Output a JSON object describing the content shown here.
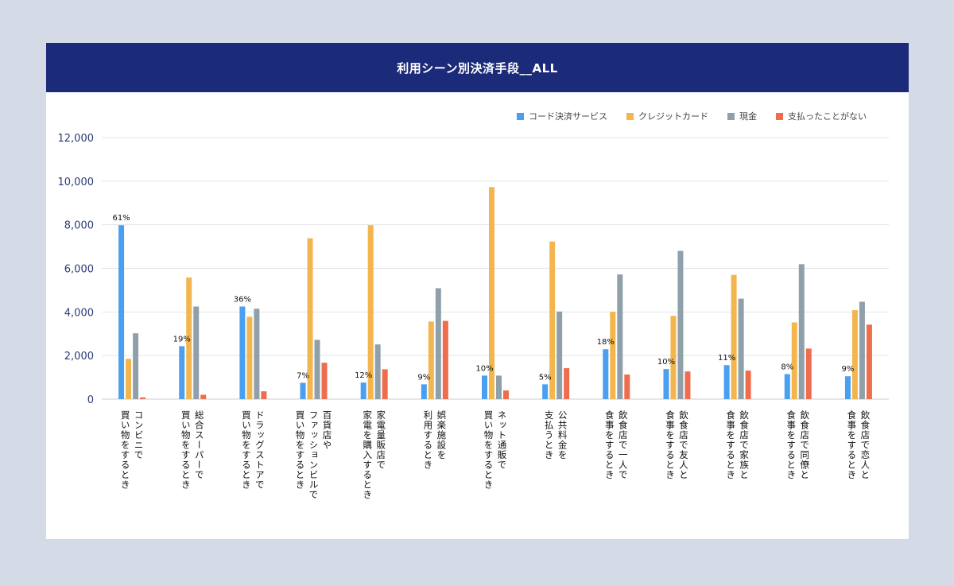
{
  "title": "利用シーン別決済手段__ALL",
  "colors": {
    "header_bg": "#1c2a7a",
    "page_bg": "#d4dae6"
  },
  "chart_data": {
    "type": "bar",
    "title": "利用シーン別決済手段__ALL",
    "ylim": [
      0,
      12000
    ],
    "y_ticks": [
      "0",
      "2,000",
      "4,000",
      "6,000",
      "8,000",
      "10,000",
      "12,000"
    ],
    "legend_position": "top-right",
    "grid": true,
    "categories": [
      [
        "コンビニで",
        "買い物をするとき"
      ],
      [
        "総合スーパーで",
        "買い物をするとき"
      ],
      [
        "ドラッグストアで",
        "買い物をするとき"
      ],
      [
        "百貨店や",
        "ファッションビルで",
        "買い物をするとき"
      ],
      [
        "家電量販店で",
        "家電を購入するとき"
      ],
      [
        "娯楽施設を",
        "利用するとき"
      ],
      [
        "ネット通販で",
        "買い物をするとき"
      ],
      [
        "公共料金を",
        "支払うとき"
      ],
      [
        "飲食店で一人で",
        "食事をするとき"
      ],
      [
        "飲食店で友人と",
        "食事をするとき"
      ],
      [
        "飲食店で家族と",
        "食事をするとき"
      ],
      [
        "飲食店で同僚と",
        "食事をするとき"
      ],
      [
        "飲食店で恋人と",
        "食事をするとき"
      ]
    ],
    "series": [
      {
        "name": "コード決済サービス",
        "color": "#4a9ff0",
        "values": [
          7980,
          2430,
          4250,
          750,
          760,
          680,
          1080,
          680,
          2290,
          1380,
          1560,
          1150,
          1050
        ]
      },
      {
        "name": "クレジットカード",
        "color": "#f3b64e",
        "values": [
          1850,
          5580,
          3780,
          7380,
          7980,
          3560,
          9730,
          7230,
          4010,
          3820,
          5700,
          3520,
          4080
        ]
      },
      {
        "name": "現金",
        "color": "#90a0aa",
        "values": [
          3020,
          4250,
          4150,
          2720,
          2510,
          5090,
          1080,
          4020,
          5720,
          6800,
          4610,
          6190,
          4470
        ]
      },
      {
        "name": "支払ったことがない",
        "color": "#ee6d4d",
        "values": [
          80,
          200,
          360,
          1670,
          1370,
          3590,
          400,
          1420,
          1130,
          1270,
          1310,
          2320,
          3420
        ]
      }
    ],
    "data_labels": [
      "61%",
      "19%",
      "36%",
      "7%",
      "12%",
      "9%",
      "10%",
      "5%",
      "18%",
      "10%",
      "11%",
      "8%",
      "9%"
    ]
  }
}
